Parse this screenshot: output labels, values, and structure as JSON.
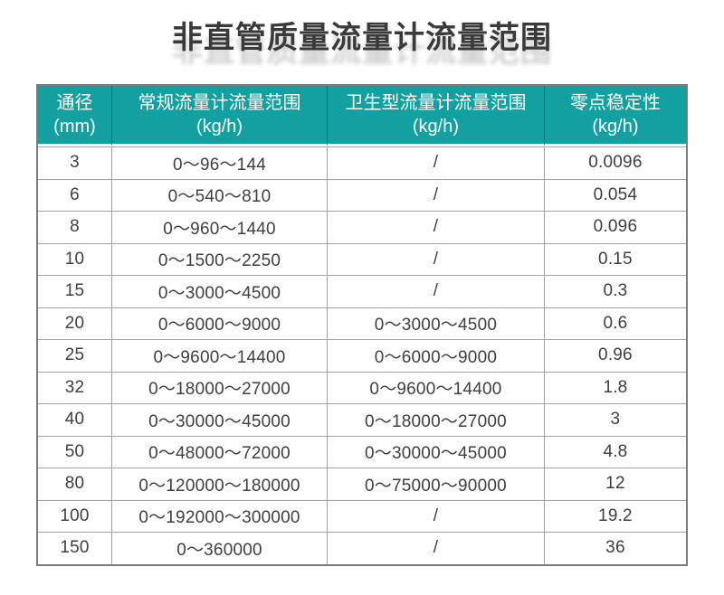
{
  "page": {
    "title": "非直管质量流量计流量范围"
  },
  "table": {
    "headers": [
      {
        "line1": "通径",
        "line2": "(mm)"
      },
      {
        "line1": "常规流量计流量范围",
        "line2": "(kg/h)"
      },
      {
        "line1": "卫生型流量计流量范围",
        "line2": "(kg/h)"
      },
      {
        "line1": "零点稳定性",
        "line2": "(kg/h)"
      }
    ],
    "rows": [
      [
        "3",
        "0～96～144",
        "/",
        "0.0096"
      ],
      [
        "6",
        "0～540～810",
        "/",
        "0.054"
      ],
      [
        "8",
        "0～960～1440",
        "/",
        "0.096"
      ],
      [
        "10",
        "0～1500～2250",
        "/",
        "0.15"
      ],
      [
        "15",
        "0～3000～4500",
        "/",
        "0.3"
      ],
      [
        "20",
        "0～6000～9000",
        "0～3000～4500",
        "0.6"
      ],
      [
        "25",
        "0～9600～14400",
        "0～6000～9000",
        "0.96"
      ],
      [
        "32",
        "0～18000～27000",
        "0～9600～14400",
        "1.8"
      ],
      [
        "40",
        "0～30000～45000",
        "0～18000～27000",
        "3"
      ],
      [
        "50",
        "0～48000～72000",
        "0～30000～45000",
        "4.8"
      ],
      [
        "80",
        "0～120000～180000",
        "0～75000～90000",
        "12"
      ],
      [
        "100",
        "0～192000～300000",
        "/",
        "19.2"
      ],
      [
        "150",
        "0～360000",
        "/",
        "36"
      ]
    ]
  },
  "colors": {
    "header_bg": "#12a0a0",
    "header_text": "#ffffff",
    "title_text": "#3a3a3a",
    "cell_text": "#3f3f3f",
    "outer_border": "#7b7b7b",
    "grid_border": "#a2a2a2",
    "header_separator": "#4a4a4a",
    "page_bg": "#ffffff"
  }
}
